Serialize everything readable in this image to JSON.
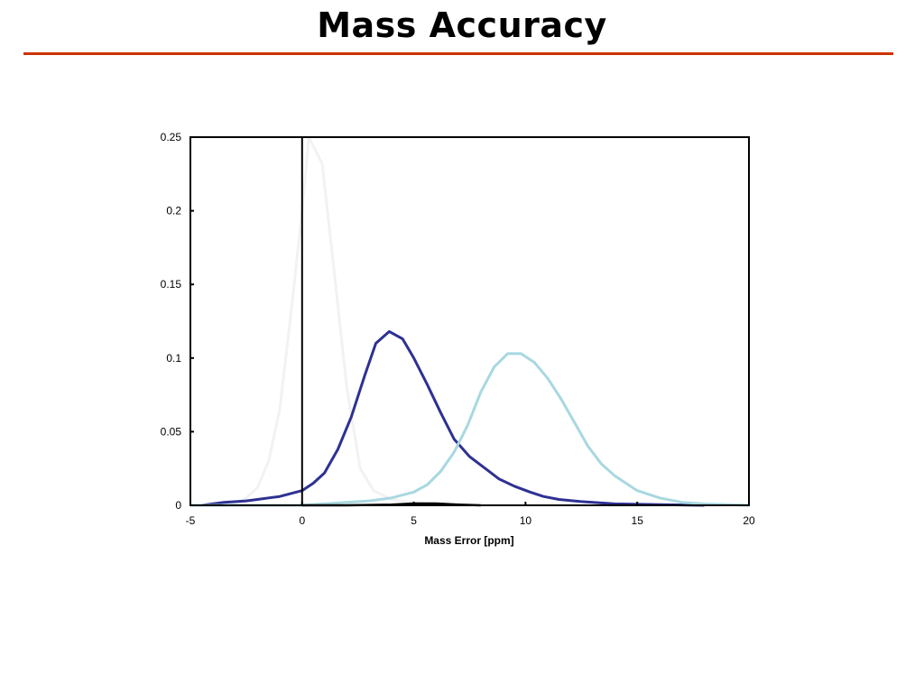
{
  "slide": {
    "title": "Mass Accuracy"
  },
  "colors": {
    "title_rule": "#cc3300"
  },
  "chart_data": {
    "type": "line",
    "title": "",
    "xlabel": "Mass Error [ppm]",
    "ylabel": "",
    "xlim": [
      -5,
      20
    ],
    "ylim": [
      0,
      0.25
    ],
    "xticks": [
      "-5",
      "0",
      "5",
      "10",
      "15",
      "20"
    ],
    "yticks": [
      "0",
      "0.05",
      "0.1",
      "0.15",
      "0.2",
      "0.25"
    ],
    "grid": false,
    "legend": "none",
    "vertical_reference_line_x": 0,
    "series": [
      {
        "color": "#f2f2f2",
        "x": [
          -3.5,
          -3.0,
          -2.5,
          -2.0,
          -1.5,
          -1.0,
          -0.5,
          0.0,
          0.3,
          0.9,
          1.5,
          2.0,
          2.6,
          3.2,
          4.0,
          5.0,
          6.0,
          7.0,
          8.0
        ],
        "y": [
          0.0,
          0.001,
          0.005,
          0.012,
          0.03,
          0.065,
          0.13,
          0.2,
          0.25,
          0.232,
          0.15,
          0.08,
          0.025,
          0.01,
          0.004,
          0.002,
          0.001,
          0.0,
          0.0
        ]
      },
      {
        "color": "#2e3192",
        "x": [
          -4.5,
          -3.5,
          -2.5,
          -2.0,
          -1.5,
          -1.0,
          -0.5,
          0.0,
          0.5,
          1.0,
          1.6,
          2.2,
          2.8,
          3.3,
          3.9,
          4.5,
          5.0,
          5.6,
          6.2,
          6.8,
          7.5,
          8.2,
          8.8,
          9.5,
          10.2,
          10.8,
          11.5,
          12.5,
          14.0,
          16.0,
          18.0
        ],
        "y": [
          0.0,
          0.002,
          0.003,
          0.004,
          0.005,
          0.006,
          0.008,
          0.01,
          0.015,
          0.022,
          0.038,
          0.06,
          0.088,
          0.11,
          0.118,
          0.113,
          0.1,
          0.082,
          0.063,
          0.045,
          0.033,
          0.025,
          0.018,
          0.013,
          0.009,
          0.006,
          0.004,
          0.0025,
          0.001,
          0.0005,
          0.0
        ]
      },
      {
        "color": "#a8d8e0",
        "x": [
          -5.0,
          -2.0,
          0.0,
          1.0,
          2.0,
          3.0,
          4.0,
          5.0,
          5.6,
          6.2,
          6.8,
          7.4,
          8.0,
          8.6,
          9.2,
          9.8,
          10.4,
          11.0,
          11.6,
          12.2,
          12.8,
          13.4,
          14.0,
          15.0,
          16.0,
          17.0,
          18.0,
          20.0
        ],
        "y": [
          0.0,
          0.0,
          0.0,
          0.001,
          0.002,
          0.003,
          0.005,
          0.009,
          0.014,
          0.023,
          0.036,
          0.054,
          0.077,
          0.094,
          0.103,
          0.103,
          0.097,
          0.086,
          0.072,
          0.056,
          0.04,
          0.028,
          0.02,
          0.01,
          0.005,
          0.002,
          0.001,
          0.0
        ]
      },
      {
        "color": "#000000",
        "x": [
          0.0,
          2.0,
          4.0,
          5.0,
          6.0,
          7.0,
          8.0
        ],
        "y": [
          0.0,
          0.0,
          0.0005,
          0.0012,
          0.0012,
          0.0005,
          0.0
        ]
      }
    ]
  }
}
